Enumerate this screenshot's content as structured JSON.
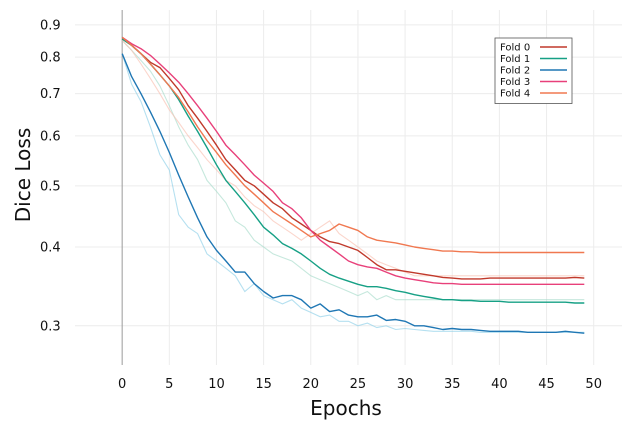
{
  "chart_data": {
    "type": "line",
    "xlabel": "Epochs",
    "ylabel": "Dice Loss",
    "xlim": [
      -5,
      53
    ],
    "ylim": [
      0.26,
      0.95
    ],
    "y_scale": "log",
    "x_ticks": [
      0,
      5,
      10,
      15,
      20,
      25,
      30,
      35,
      40,
      45,
      50
    ],
    "y_ticks": [
      0.3,
      0.4,
      0.5,
      0.6,
      0.7,
      0.8,
      0.9
    ],
    "grid": true,
    "legend_position": "top-right",
    "x": [
      0,
      1,
      2,
      3,
      4,
      5,
      6,
      7,
      8,
      9,
      10,
      11,
      12,
      13,
      14,
      15,
      16,
      17,
      18,
      19,
      20,
      21,
      22,
      23,
      24,
      25,
      26,
      27,
      28,
      29,
      30,
      31,
      32,
      33,
      34,
      35,
      36,
      37,
      38,
      39,
      40,
      41,
      42,
      43,
      44,
      45,
      46,
      47,
      48,
      49
    ],
    "series": [
      {
        "name": "Fold 0",
        "color": "#c0392b",
        "values": [
          0.855,
          0.835,
          0.81,
          0.785,
          0.77,
          0.74,
          0.71,
          0.67,
          0.64,
          0.61,
          0.58,
          0.55,
          0.53,
          0.51,
          0.5,
          0.485,
          0.47,
          0.46,
          0.445,
          0.435,
          0.425,
          0.415,
          0.408,
          0.405,
          0.4,
          0.395,
          0.385,
          0.375,
          0.368,
          0.368,
          0.366,
          0.364,
          0.362,
          0.36,
          0.358,
          0.357,
          0.356,
          0.356,
          0.356,
          0.357,
          0.357,
          0.357,
          0.357,
          0.357,
          0.357,
          0.357,
          0.357,
          0.357,
          0.358,
          0.357
        ]
      },
      {
        "name": "Fold 1",
        "color": "#16a085",
        "values": [
          0.855,
          0.835,
          0.81,
          0.78,
          0.75,
          0.72,
          0.685,
          0.645,
          0.61,
          0.575,
          0.54,
          0.51,
          0.49,
          0.47,
          0.45,
          0.43,
          0.418,
          0.405,
          0.398,
          0.39,
          0.38,
          0.37,
          0.362,
          0.357,
          0.353,
          0.349,
          0.346,
          0.346,
          0.344,
          0.341,
          0.339,
          0.336,
          0.334,
          0.332,
          0.33,
          0.33,
          0.329,
          0.329,
          0.328,
          0.328,
          0.328,
          0.327,
          0.327,
          0.327,
          0.327,
          0.327,
          0.327,
          0.327,
          0.326,
          0.326
        ]
      },
      {
        "name": "Fold 2",
        "color": "#1f77b4",
        "values": [
          0.81,
          0.745,
          0.7,
          0.655,
          0.61,
          0.565,
          0.52,
          0.48,
          0.445,
          0.415,
          0.395,
          0.38,
          0.365,
          0.365,
          0.35,
          0.34,
          0.332,
          0.335,
          0.335,
          0.33,
          0.32,
          0.325,
          0.316,
          0.318,
          0.312,
          0.31,
          0.31,
          0.312,
          0.306,
          0.307,
          0.305,
          0.3,
          0.3,
          0.298,
          0.296,
          0.297,
          0.296,
          0.296,
          0.295,
          0.294,
          0.294,
          0.294,
          0.294,
          0.293,
          0.293,
          0.293,
          0.293,
          0.294,
          0.293,
          0.292
        ]
      },
      {
        "name": "Fold 3",
        "color": "#e8407a",
        "values": [
          0.86,
          0.84,
          0.825,
          0.805,
          0.78,
          0.755,
          0.73,
          0.7,
          0.67,
          0.64,
          0.61,
          0.58,
          0.56,
          0.54,
          0.52,
          0.505,
          0.49,
          0.47,
          0.46,
          0.445,
          0.425,
          0.41,
          0.4,
          0.39,
          0.38,
          0.375,
          0.372,
          0.37,
          0.365,
          0.36,
          0.357,
          0.355,
          0.353,
          0.351,
          0.35,
          0.35,
          0.349,
          0.349,
          0.349,
          0.349,
          0.349,
          0.349,
          0.349,
          0.349,
          0.349,
          0.349,
          0.349,
          0.349,
          0.349,
          0.349
        ]
      },
      {
        "name": "Fold 4",
        "color": "#f07850",
        "values": [
          0.86,
          0.835,
          0.81,
          0.78,
          0.75,
          0.72,
          0.69,
          0.655,
          0.62,
          0.59,
          0.565,
          0.54,
          0.52,
          0.5,
          0.485,
          0.47,
          0.455,
          0.445,
          0.435,
          0.425,
          0.415,
          0.42,
          0.425,
          0.435,
          0.43,
          0.425,
          0.415,
          0.41,
          0.408,
          0.406,
          0.403,
          0.4,
          0.398,
          0.396,
          0.394,
          0.394,
          0.393,
          0.393,
          0.392,
          0.392,
          0.392,
          0.392,
          0.392,
          0.392,
          0.392,
          0.392,
          0.392,
          0.392,
          0.392,
          0.392
        ]
      }
    ],
    "faint_series": [
      {
        "color": "#8ecfe8",
        "values": [
          0.81,
          0.725,
          0.68,
          0.62,
          0.56,
          0.53,
          0.45,
          0.43,
          0.42,
          0.39,
          0.38,
          0.37,
          0.36,
          0.34,
          0.35,
          0.335,
          0.33,
          0.325,
          0.33,
          0.32,
          0.315,
          0.31,
          0.312,
          0.305,
          0.305,
          0.3,
          0.303,
          0.298,
          0.3,
          0.296,
          0.297,
          0.296,
          0.295,
          0.294,
          0.294,
          0.294,
          0.294,
          0.294,
          0.293,
          0.293,
          0.293,
          0.293,
          0.293,
          0.293,
          0.293,
          0.293,
          0.293,
          0.293,
          0.293,
          0.293
        ]
      },
      {
        "color": "#a8dccb",
        "values": [
          0.85,
          0.82,
          0.79,
          0.76,
          0.72,
          0.67,
          0.62,
          0.58,
          0.55,
          0.51,
          0.49,
          0.47,
          0.44,
          0.43,
          0.41,
          0.4,
          0.39,
          0.385,
          0.38,
          0.37,
          0.36,
          0.355,
          0.35,
          0.345,
          0.34,
          0.335,
          0.34,
          0.33,
          0.335,
          0.33,
          0.33,
          0.33,
          0.33,
          0.33,
          0.33,
          0.33,
          0.33,
          0.33,
          0.33,
          0.33,
          0.33,
          0.33,
          0.33,
          0.33,
          0.33,
          0.33,
          0.33,
          0.33,
          0.33,
          0.33
        ]
      },
      {
        "color": "#f9c0b0",
        "values": [
          0.85,
          0.82,
          0.78,
          0.74,
          0.7,
          0.66,
          0.63,
          0.6,
          0.575,
          0.55,
          0.53,
          0.51,
          0.5,
          0.48,
          0.465,
          0.455,
          0.44,
          0.43,
          0.42,
          0.41,
          0.42,
          0.43,
          0.44,
          0.42,
          0.41,
          0.4,
          0.39,
          0.38,
          0.375,
          0.37,
          0.365,
          0.36,
          0.36,
          0.36,
          0.36,
          0.36,
          0.36,
          0.36,
          0.36,
          0.36,
          0.36,
          0.36,
          0.36,
          0.36,
          0.36,
          0.36,
          0.36,
          0.36,
          0.36,
          0.36
        ]
      }
    ]
  }
}
